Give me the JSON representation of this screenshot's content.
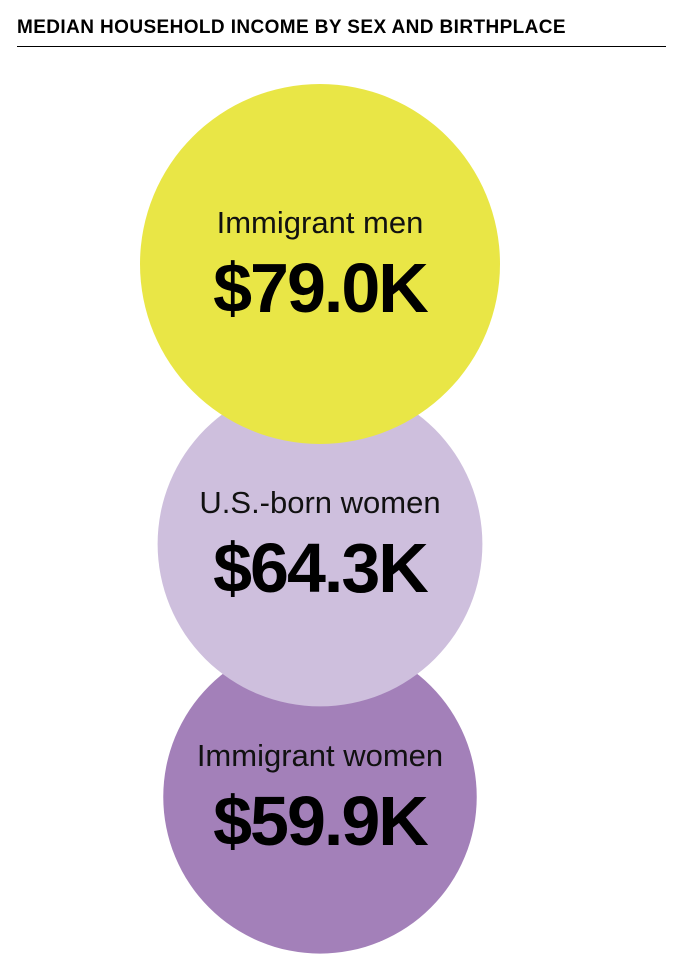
{
  "chart_data": {
    "type": "bubble",
    "title": "MEDIAN HOUSEHOLD INCOME BY SEX AND BIRTHPLACE",
    "unit": "USD",
    "series": [
      {
        "name": "Immigrant men",
        "value": 79.0,
        "label": "$79.0K",
        "color": "#E9E646"
      },
      {
        "name": "U.S.-born women",
        "value": 64.3,
        "label": "$64.3K",
        "color": "#CEBFDD"
      },
      {
        "name": "Immigrant women",
        "value": 59.9,
        "label": "$59.9K",
        "color": "#A380B9"
      }
    ]
  }
}
